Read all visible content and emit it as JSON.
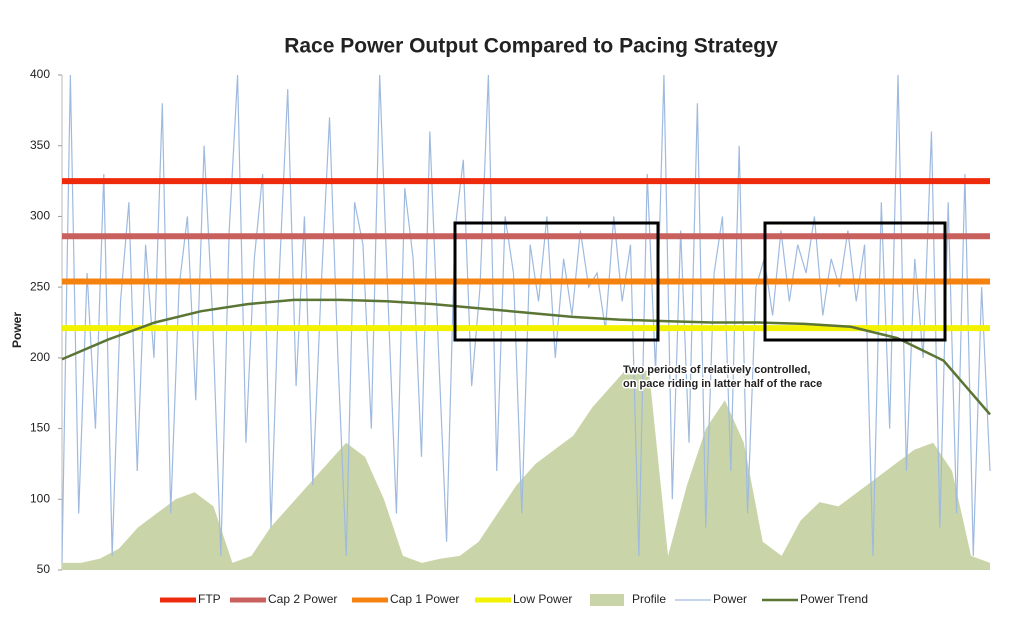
{
  "chart_data": {
    "type": "line",
    "title": "Race Power Output Compared to Pacing Strategy",
    "y_label": "Power",
    "ylim": [
      50,
      400
    ],
    "yticks": [
      50,
      100,
      150,
      200,
      250,
      300,
      350,
      400
    ],
    "annotation": [
      "Two periods of relatively controlled,",
      "on pace riding in latter half of the race"
    ],
    "series": [
      {
        "name": "FTP",
        "color": "#ee2a0c",
        "style": "hline",
        "values": [
          325
        ]
      },
      {
        "name": "Cap 2 Power",
        "color": "#c8605e",
        "style": "hline",
        "values": [
          286
        ]
      },
      {
        "name": "Cap 1 Power",
        "color": "#f5820f",
        "style": "hline",
        "values": [
          254
        ]
      },
      {
        "name": "Low Power",
        "color": "#f2f200",
        "style": "hline",
        "values": [
          221
        ]
      },
      {
        "name": "Profile",
        "color": "#c9d5a9",
        "style": "area",
        "values": [
          55,
          55,
          58,
          65,
          80,
          90,
          100,
          105,
          95,
          55,
          60,
          80,
          95,
          110,
          125,
          140,
          130,
          100,
          60,
          55,
          58,
          60,
          70,
          90,
          110,
          125,
          135,
          145,
          165,
          180,
          195,
          190,
          60,
          110,
          150,
          170,
          140,
          70,
          60,
          85,
          98,
          95,
          105,
          115,
          125,
          135,
          140,
          120,
          60,
          55
        ]
      },
      {
        "name": "Power",
        "color": "#9fbadf",
        "style": "line",
        "values": [
          55,
          400,
          90,
          260,
          150,
          330,
          60,
          240,
          310,
          120,
          280,
          200,
          380,
          90,
          250,
          300,
          170,
          350,
          230,
          60,
          290,
          400,
          140,
          270,
          330,
          80,
          260,
          390,
          180,
          300,
          110,
          250,
          370,
          200,
          60,
          310,
          280,
          150,
          400,
          240,
          90,
          320,
          270,
          130,
          360,
          210,
          70,
          290,
          340,
          180,
          250,
          400,
          120,
          300,
          260,
          90,
          280,
          240,
          300,
          200,
          270,
          230,
          290,
          250,
          260,
          220,
          300,
          240,
          280,
          60,
          330,
          190,
          400,
          100,
          290,
          140,
          380,
          80,
          260,
          300,
          120,
          350,
          90,
          250,
          270,
          230,
          290,
          240,
          280,
          260,
          300,
          230,
          270,
          250,
          290,
          240,
          280,
          60,
          310,
          150,
          400,
          120,
          270,
          200,
          360,
          80,
          310,
          90,
          330,
          60,
          250,
          120
        ]
      },
      {
        "name": "Power Trend",
        "color": "#5b7535",
        "style": "trend",
        "values": [
          199,
          213,
          225,
          233,
          238,
          241,
          241,
          240,
          238,
          235,
          232,
          229,
          227,
          226,
          225,
          225,
          224,
          222,
          214,
          198,
          160
        ]
      }
    ]
  }
}
